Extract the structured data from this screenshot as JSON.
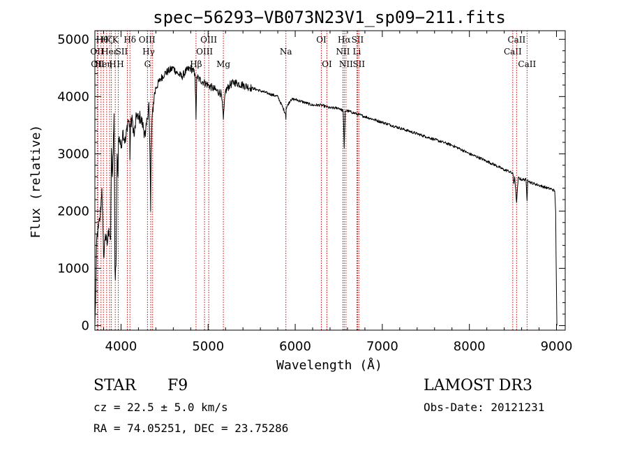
{
  "chart_data": {
    "type": "line",
    "title": "spec−56293−VB073N23V1_sp09−211.fits",
    "xlabel": "Wavelength (Å)",
    "ylabel": "Flux (relative)",
    "xlim": [
      3700,
      9100
    ],
    "ylim": [
      -80,
      5150
    ],
    "x_ticks": [
      4000,
      5000,
      6000,
      7000,
      8000,
      9000
    ],
    "y_ticks": [
      0,
      1000,
      2000,
      3000,
      4000,
      5000
    ],
    "grid": false,
    "line_color": "#000000",
    "marker_color": "#cc0000",
    "series": [
      {
        "name": "flux",
        "x": [
          3700,
          3710,
          3720,
          3740,
          3760,
          3780,
          3800,
          3820,
          3840,
          3860,
          3880,
          3890,
          3900,
          3910,
          3920,
          3930,
          3935,
          3945,
          3955,
          3965,
          3970,
          3980,
          4000,
          4020,
          4050,
          4080,
          4100,
          4102,
          4110,
          4130,
          4150,
          4180,
          4200,
          4220,
          4250,
          4280,
          4300,
          4320,
          4335,
          4340,
          4345,
          4360,
          4380,
          4400,
          4450,
          4500,
          4550,
          4600,
          4650,
          4700,
          4750,
          4800,
          4850,
          4861,
          4870,
          4900,
          4950,
          5000,
          5050,
          5100,
          5150,
          5167,
          5175,
          5183,
          5200,
          5250,
          5300,
          5400,
          5500,
          5600,
          5700,
          5800,
          5889,
          5893,
          5896,
          5950,
          6000,
          6100,
          6200,
          6300,
          6400,
          6500,
          6550,
          6563,
          6575,
          6600,
          6700,
          6800,
          6900,
          7000,
          7100,
          7200,
          7300,
          7400,
          7500,
          7600,
          7700,
          7800,
          7900,
          8000,
          8100,
          8200,
          8300,
          8400,
          8450,
          8500,
          8510,
          8520,
          8542,
          8560,
          8600,
          8650,
          8662,
          8670,
          8700,
          8800,
          8900,
          8950,
          8980,
          8990,
          8995,
          9000,
          9005
        ],
        "y": [
          0,
          600,
          1500,
          1700,
          1900,
          2400,
          1200,
          1600,
          1400,
          1700,
          1500,
          3100,
          2600,
          3000,
          3700,
          1000,
          800,
          1300,
          3000,
          2600,
          3200,
          3300,
          3100,
          3400,
          3200,
          3600,
          3500,
          2900,
          3500,
          3600,
          3300,
          3700,
          3600,
          3650,
          3500,
          3300,
          3600,
          3900,
          2700,
          2000,
          3000,
          3700,
          4000,
          4150,
          4300,
          4400,
          4450,
          4500,
          4400,
          4350,
          4450,
          4500,
          4400,
          3600,
          4350,
          4300,
          4250,
          4200,
          4150,
          4100,
          4050,
          3800,
          3600,
          3800,
          4100,
          4200,
          4250,
          4200,
          4150,
          4100,
          4050,
          4000,
          3700,
          3600,
          3800,
          3950,
          3950,
          3900,
          3850,
          3850,
          3800,
          3800,
          3750,
          3100,
          3750,
          3750,
          3700,
          3650,
          3600,
          3550,
          3500,
          3450,
          3400,
          3350,
          3300,
          3250,
          3200,
          3150,
          3080,
          3000,
          2940,
          2870,
          2800,
          2720,
          2700,
          2650,
          2480,
          2600,
          2150,
          2580,
          2550,
          2550,
          2180,
          2550,
          2500,
          2450,
          2400,
          2380,
          2350,
          2000,
          1200,
          600,
          0
        ]
      }
    ],
    "line_markers": [
      {
        "wl": 3727,
        "label": "OII",
        "row": 1,
        "anchor": "start",
        "dx": -10
      },
      {
        "wl": 3734,
        "label": "OII",
        "row": 2,
        "anchor": "start",
        "dx": -10
      },
      {
        "wl": 3770,
        "label": "Hθ",
        "row": 0,
        "anchor": "start",
        "dx": -7
      },
      {
        "wl": 3798,
        "label": "Heη",
        "row": 2,
        "anchor": "middle",
        "dx": 0
      },
      {
        "wl": 3835,
        "label": "Hζ",
        "row": 0,
        "anchor": "middle",
        "dx": 0
      },
      {
        "wl": 3869,
        "label": "Heε",
        "row": 1,
        "anchor": "middle",
        "dx": 0
      },
      {
        "wl": 3889,
        "label": "H",
        "row": 2,
        "anchor": "middle",
        "dx": 2
      },
      {
        "wl": 3934,
        "label": "K",
        "row": 0,
        "anchor": "middle",
        "dx": 0
      },
      {
        "wl": 3968,
        "label": "H",
        "row": 2,
        "anchor": "middle",
        "dx": 3
      },
      {
        "wl": 4072,
        "label": "SII",
        "row": 1,
        "anchor": "middle",
        "dx": -8
      },
      {
        "wl": 4102,
        "label": "Hδ",
        "row": 0,
        "anchor": "middle",
        "dx": 0
      },
      {
        "wl": 4304,
        "label": "G",
        "row": 2,
        "anchor": "middle",
        "dx": 0
      },
      {
        "wl": 4341,
        "label": "Hγ",
        "row": 1,
        "anchor": "middle",
        "dx": -3
      },
      {
        "wl": 4363,
        "label": "OIII",
        "row": 0,
        "anchor": "middle",
        "dx": -8
      },
      {
        "wl": 4861,
        "label": "Hβ",
        "row": 2,
        "anchor": "middle",
        "dx": 0
      },
      {
        "wl": 4959,
        "label": "OIII",
        "row": 1,
        "anchor": "middle",
        "dx": 0
      },
      {
        "wl": 5007,
        "label": "OIII",
        "row": 0,
        "anchor": "middle",
        "dx": 0
      },
      {
        "wl": 5175,
        "label": "Mg",
        "row": 2,
        "anchor": "middle",
        "dx": 0
      },
      {
        "wl": 5893,
        "label": "Na",
        "row": 1,
        "anchor": "middle",
        "dx": 0
      },
      {
        "wl": 6300,
        "label": "OI",
        "row": 0,
        "anchor": "middle",
        "dx": 0
      },
      {
        "wl": 6364,
        "label": "OI",
        "row": 2,
        "anchor": "middle",
        "dx": 0
      },
      {
        "wl": 6548,
        "label": "NII",
        "row": 1,
        "anchor": "middle",
        "dx": 0
      },
      {
        "wl": 6563,
        "label": "Hα",
        "row": 0,
        "anchor": "middle",
        "dx": 0
      },
      {
        "wl": 6583,
        "label": "NII",
        "row": 2,
        "anchor": "middle",
        "dx": 0
      },
      {
        "wl": 6708,
        "label": "Li",
        "row": 1,
        "anchor": "middle",
        "dx": 0
      },
      {
        "wl": 6716,
        "label": "SII",
        "row": 0,
        "anchor": "middle",
        "dx": 0
      },
      {
        "wl": 6731,
        "label": "SII",
        "row": 2,
        "anchor": "middle",
        "dx": 0
      },
      {
        "wl": 8498,
        "label": "CaII",
        "row": 1,
        "anchor": "middle",
        "dx": 0
      },
      {
        "wl": 8542,
        "label": "CaII",
        "row": 0,
        "anchor": "middle",
        "dx": 0
      },
      {
        "wl": 8662,
        "label": "CaII",
        "row": 2,
        "anchor": "middle",
        "dx": 0
      }
    ]
  },
  "info": {
    "class_label": "STAR",
    "subclass": "F9",
    "survey": "LAMOST DR3",
    "redshift_line": "cz = 22.5 ± 5.0 km/s",
    "obs_date_line": "Obs-Date: 20121231",
    "coords_line": "RA =  74.05251, DEC =  23.75286"
  }
}
